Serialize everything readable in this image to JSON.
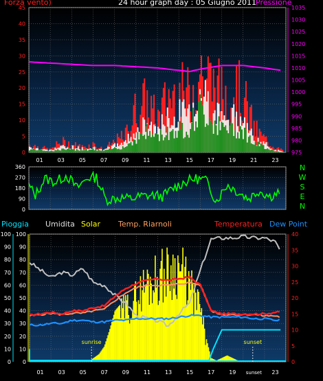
{
  "header": {
    "wind_label": "Forza vento)",
    "title": "24 hour graph day : 05 Giugno 2011",
    "pressure_label": "Pressione"
  },
  "legend": {
    "rain": "Pioggia",
    "humidity": "Umidita",
    "solar": "Solar",
    "temp_inside": "Temp. Riarnoli",
    "temperature": "Temperatura",
    "dewpoint": "Dew Point"
  },
  "colors": {
    "wind_axis": "#ff2020",
    "pressure": "#ff00ff",
    "direction": "#00ff00",
    "solar": "#ffff00",
    "humidity": "#c0c0c0",
    "temperature": "#ff2020",
    "dewpoint": "#1e90ff",
    "rain": "#00e5ff",
    "grid": "#6b6b6b"
  },
  "chart_data": [
    {
      "type": "area",
      "id": "wind_pressure",
      "xlabel_ticks": [
        "01",
        "03",
        "05",
        "07",
        "09",
        "11",
        "13",
        "15",
        "17",
        "19",
        "21",
        "23"
      ],
      "left_axis": {
        "ylim": [
          0,
          45
        ],
        "ticks": [
          0,
          5,
          10,
          15,
          20,
          25,
          30,
          35,
          40,
          45
        ]
      },
      "right_axis": {
        "ylim": [
          975,
          1035
        ],
        "ticks": [
          975,
          980,
          985,
          990,
          995,
          1000,
          1005,
          1010,
          1015,
          1020,
          1025,
          1030,
          1035
        ]
      },
      "series": [
        {
          "name": "Pressione",
          "axis": "right",
          "x": [
            0,
            2,
            4,
            6,
            8,
            10,
            12,
            14,
            15,
            16,
            18,
            20,
            22,
            23.5
          ],
          "y": [
            1012.5,
            1012,
            1011.5,
            1011,
            1011,
            1010.5,
            1010,
            1009,
            1008.5,
            1009.5,
            1011,
            1011,
            1010,
            1009
          ]
        },
        {
          "axis": "left",
          "x": [
            0,
            1,
            2,
            3,
            4,
            5,
            6,
            7,
            8,
            9,
            10,
            11,
            12,
            13,
            14,
            15,
            16,
            17,
            18,
            19,
            20,
            21,
            22,
            23,
            23.5
          ],
          "y": [
            3,
            2,
            1,
            4,
            3,
            2,
            3,
            1,
            4,
            6,
            16,
            19,
            12,
            21,
            22,
            21,
            31,
            26,
            22,
            24,
            21,
            9,
            5,
            2,
            1
          ]
        },
        {
          "axis": "left",
          "x": [
            0,
            1,
            2,
            3,
            4,
            5,
            6,
            7,
            8,
            9,
            10,
            11,
            12,
            13,
            14,
            15,
            16,
            17,
            18,
            19,
            20,
            21,
            22,
            23,
            23.5
          ],
          "y": [
            2,
            1.5,
            1,
            2,
            2,
            1.5,
            2,
            1,
            2.5,
            4,
            8,
            10,
            9,
            12,
            14,
            15,
            23,
            18,
            13,
            14,
            12,
            5,
            3,
            1,
            0.5
          ]
        },
        {
          "axis": "left",
          "x": [
            0,
            1,
            2,
            3,
            4,
            5,
            6,
            7,
            8,
            9,
            10,
            11,
            12,
            13,
            14,
            15,
            16,
            17,
            18,
            19,
            20,
            21,
            22,
            23,
            23.5
          ],
          "y": [
            1,
            1,
            0.5,
            1,
            1,
            1,
            1,
            0.5,
            1.5,
            2,
            5,
            7,
            6,
            7,
            8,
            9,
            15,
            12,
            8,
            9,
            8,
            3,
            2,
            0.5,
            0.2
          ]
        }
      ]
    },
    {
      "type": "line",
      "id": "direction",
      "yticks": [
        0,
        90,
        180,
        270,
        360
      ],
      "ylim": [
        0,
        360
      ],
      "compass_labels": [
        "N",
        "W",
        "S",
        "E",
        "N"
      ],
      "series": [
        {
          "x": [
            0,
            0.6,
            1.5,
            2.5,
            3.5,
            4.5,
            5.5,
            6.3,
            7.2,
            8.5,
            9.5,
            10.5,
            11.5,
            12.5,
            13.5,
            14.5,
            15.5,
            16.5,
            17.5,
            18.5,
            19.5,
            20.5,
            21.5,
            22.5,
            23.5
          ],
          "y": [
            200,
            120,
            260,
            230,
            290,
            180,
            270,
            270,
            80,
            100,
            90,
            110,
            120,
            110,
            180,
            230,
            260,
            250,
            70,
            210,
            150,
            90,
            160,
            110,
            150
          ]
        }
      ]
    },
    {
      "type": "line",
      "id": "solar_temp",
      "xlabel_ticks": [
        "01",
        "03",
        "05",
        "07",
        "09",
        "11",
        "13",
        "15",
        "17",
        "19",
        "21",
        "23"
      ],
      "sunrise_label": "sunrise",
      "sunset_label": "sunset",
      "sunset_tick_label": "sunset",
      "left_axis_1": {
        "ylim": [
          0,
          100
        ],
        "ticks": [
          0,
          10,
          20,
          30,
          40,
          50,
          60,
          70,
          80,
          90,
          100
        ]
      },
      "left_axis_2": {
        "ylim": [
          0,
          100
        ],
        "ticks": [
          0,
          10,
          20,
          30,
          40,
          50,
          60,
          70,
          80,
          90,
          100
        ]
      },
      "right_axis": {
        "ylim": [
          0,
          40
        ],
        "ticks": [
          0,
          5,
          10,
          15,
          20,
          25,
          30,
          35,
          40
        ]
      },
      "series": [
        {
          "name": "Solar",
          "axis": "left",
          "x": [
            0,
            5.5,
            6,
            6.5,
            7,
            7.5,
            8,
            9,
            10,
            11,
            12,
            13,
            14,
            15,
            16,
            16.5,
            17,
            17.5,
            18,
            18.5,
            19,
            19.5,
            20,
            24
          ],
          "y": [
            0,
            0,
            3,
            6,
            12,
            25,
            40,
            50,
            60,
            75,
            80,
            85,
            90,
            70,
            50,
            20,
            3,
            1,
            3,
            5,
            3,
            1,
            0,
            0
          ]
        },
        {
          "name": "Umidita",
          "axis": "left",
          "x": [
            0,
            1,
            2,
            3,
            4,
            5,
            6,
            7,
            8,
            9,
            10,
            11,
            12,
            13,
            14,
            15,
            16,
            17,
            18,
            19,
            20,
            21,
            22,
            23,
            23.5
          ],
          "y": [
            78,
            72,
            66,
            70,
            68,
            73,
            62,
            60,
            52,
            46,
            36,
            34,
            32,
            28,
            38,
            46,
            72,
            96,
            97,
            97,
            98,
            97,
            97,
            94,
            86
          ]
        },
        {
          "name": "Temperatura",
          "axis": "right",
          "x": [
            0,
            1,
            2,
            3,
            4,
            5,
            6,
            7,
            8,
            9,
            10,
            11,
            12,
            13,
            14,
            15,
            16,
            17,
            18,
            19,
            20,
            21,
            22,
            23,
            23.5
          ],
          "y": [
            14.5,
            15,
            15.5,
            15,
            16,
            16,
            17,
            17.5,
            20.5,
            23,
            24.5,
            25.5,
            26,
            25.5,
            26,
            26.5,
            24,
            16,
            15,
            15,
            15,
            15,
            15,
            15.5,
            15.5
          ]
        },
        {
          "name": "Dew Point",
          "axis": "right",
          "x": [
            0,
            1,
            2,
            3,
            4,
            5,
            6,
            7,
            8,
            9,
            10,
            11,
            12,
            13,
            14,
            15,
            16,
            17,
            18,
            19,
            20,
            21,
            22,
            23,
            23.5
          ],
          "y": [
            11.5,
            11.5,
            12,
            12,
            13,
            13,
            12.5,
            12.5,
            13,
            13,
            13.5,
            13.5,
            13.5,
            13.5,
            14,
            14.5,
            14.5,
            14,
            14,
            14,
            14,
            13.5,
            13.5,
            13,
            13
          ]
        },
        {
          "axis": "left",
          "x": [
            0,
            1,
            2,
            3,
            4,
            5,
            6,
            7,
            8,
            9,
            10,
            11,
            12,
            13,
            14,
            15,
            16,
            17,
            18,
            19,
            20,
            21,
            22,
            23,
            23.5
          ],
          "y": [
            36,
            37,
            38,
            37,
            38,
            38,
            40,
            41,
            48,
            54,
            58,
            60,
            60,
            60,
            61,
            62,
            60,
            40,
            37,
            37,
            37,
            37,
            36,
            36,
            35
          ]
        },
        {
          "name": "Pioggia",
          "axis": "left",
          "x": [
            0,
            16.8,
            17.2,
            18,
            23.5
          ],
          "y": [
            1,
            1,
            10,
            25,
            25
          ]
        }
      ]
    }
  ]
}
